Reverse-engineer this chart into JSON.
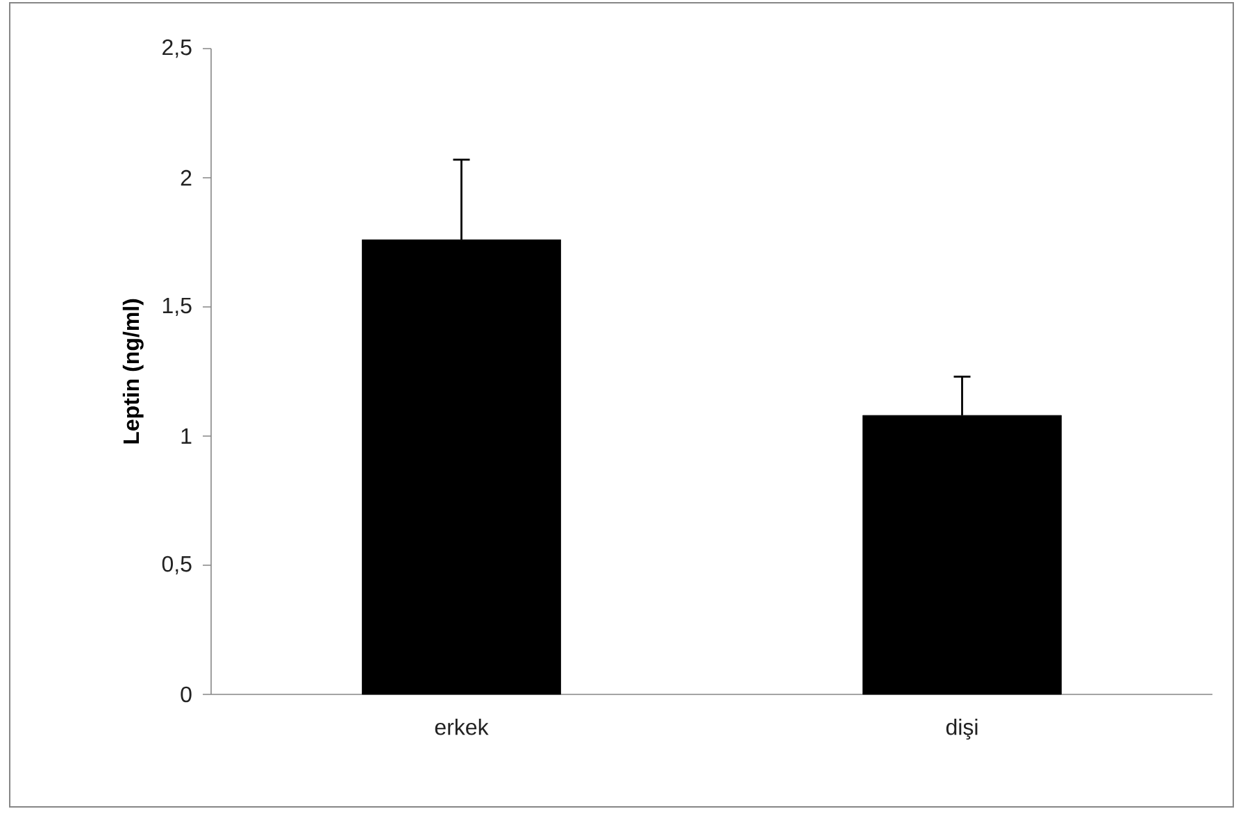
{
  "chart_data": {
    "type": "bar",
    "ylabel": "Leptin (ng/ml)",
    "categories": [
      "erkek",
      "dişi"
    ],
    "values": [
      1.76,
      1.08
    ],
    "errors": [
      [
        1.76,
        2.07
      ],
      [
        1.08,
        1.23
      ]
    ],
    "color": "#000000",
    "ylim": [
      0,
      2.5
    ],
    "yticks": [
      {
        "value": 0,
        "label": "0"
      },
      {
        "value": 0.5,
        "label": "0,5"
      },
      {
        "value": 1,
        "label": "1"
      },
      {
        "value": 1.5,
        "label": "1,5"
      },
      {
        "value": 2,
        "label": "2"
      },
      {
        "value": 2.5,
        "label": "2,5"
      }
    ],
    "grid": false
  }
}
